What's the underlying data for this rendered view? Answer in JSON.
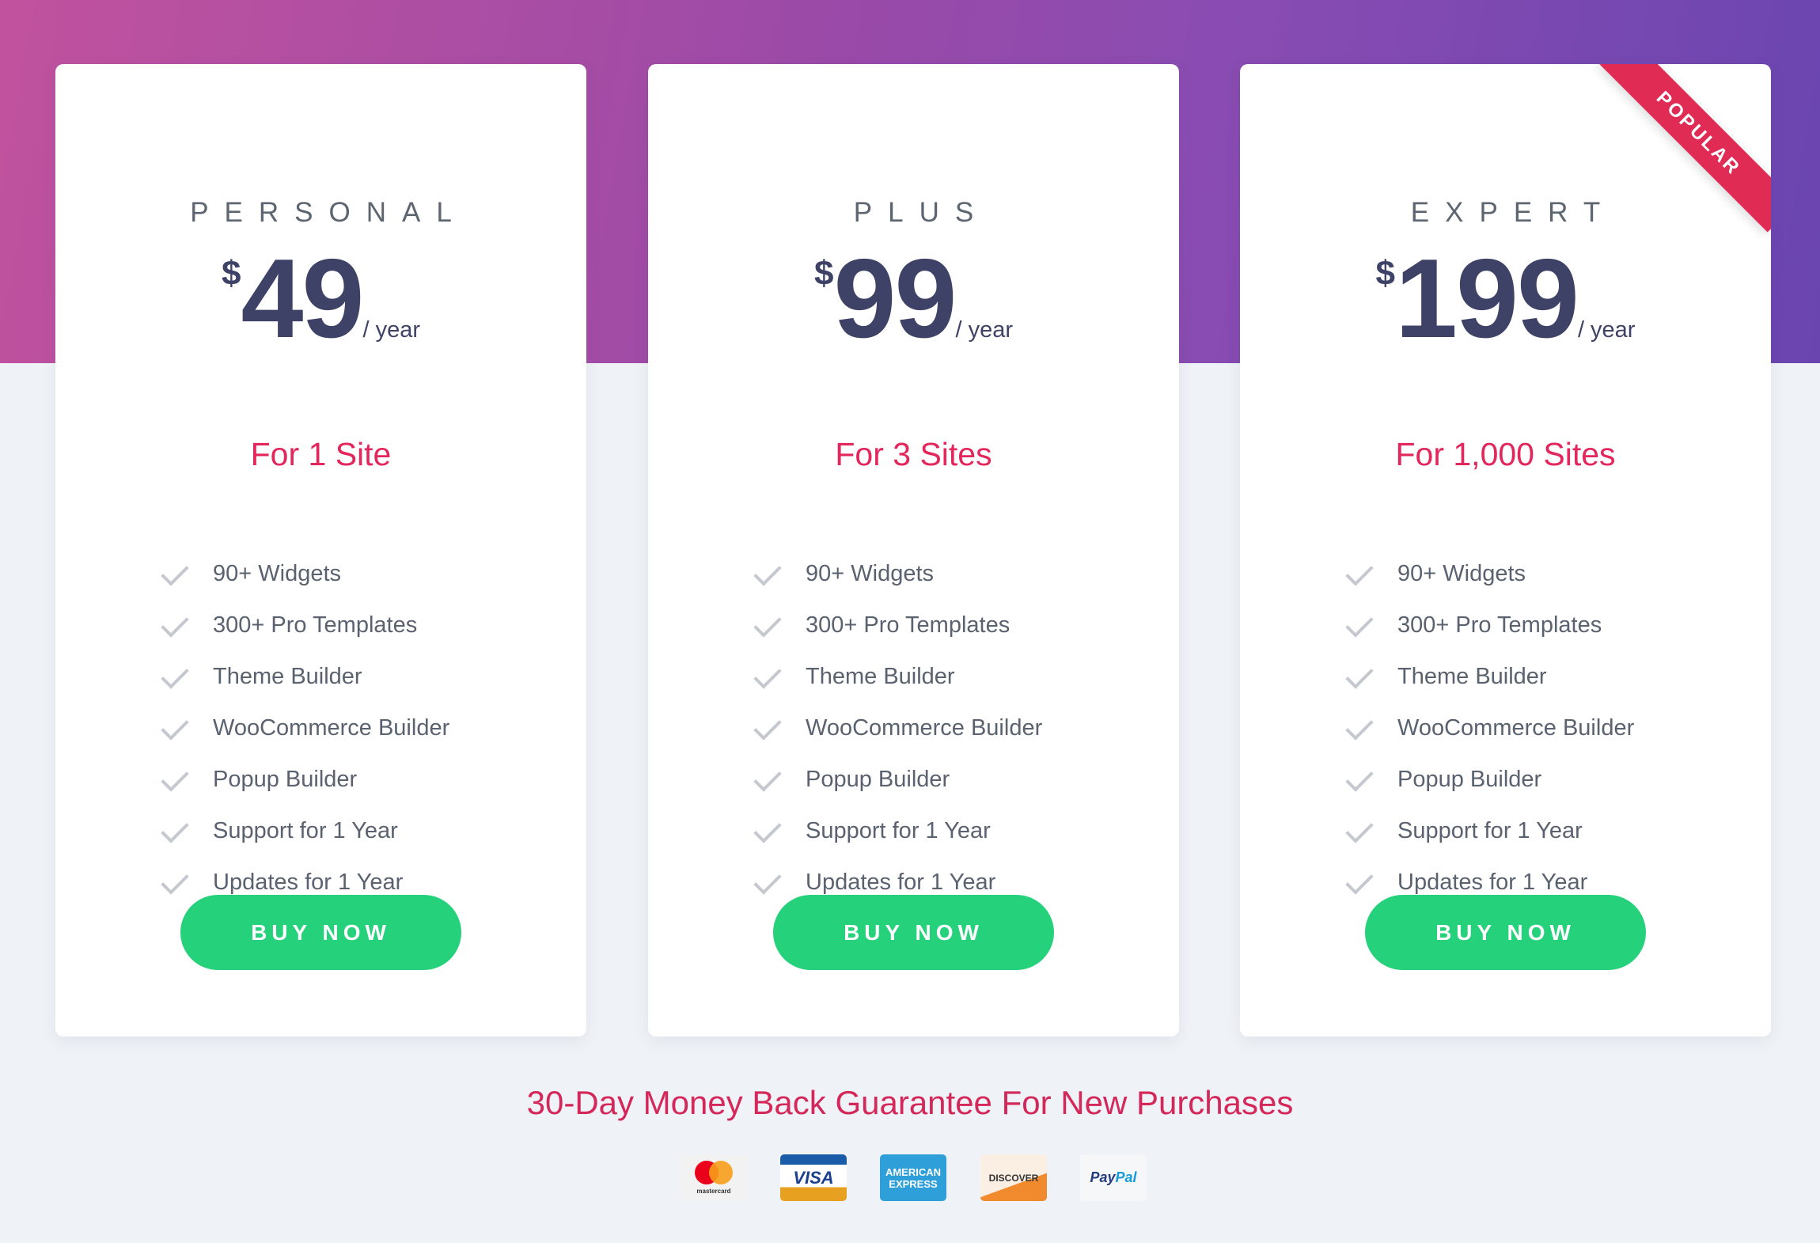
{
  "plans": [
    {
      "title": "PERSONAL",
      "currency": "$",
      "amount": "49",
      "period": "/ year",
      "subtitle": "For 1 Site",
      "button": "BUY NOW"
    },
    {
      "title": "PLUS",
      "currency": "$",
      "amount": "99",
      "period": "/ year",
      "subtitle": "For 3 Sites",
      "button": "BUY NOW"
    },
    {
      "title": "EXPERT",
      "currency": "$",
      "amount": "199",
      "period": "/ year",
      "subtitle": "For 1,000 Sites",
      "button": "BUY NOW",
      "badge": "POPULAR"
    }
  ],
  "features": [
    "90+ Widgets",
    "300+ Pro Templates",
    "Theme Builder",
    "WooCommerce Builder",
    "Popup Builder",
    "Support for 1 Year",
    "Updates for 1 Year"
  ],
  "guarantee": "30-Day Money Back Guarantee For New Purchases",
  "payments": {
    "mastercard": "mastercard",
    "visa": "VISA",
    "amex1": "AMERICAN",
    "amex2": "EXPRESS",
    "discover": "DISCOVER",
    "paypal1": "Pay",
    "paypal2": "Pal"
  },
  "colors": {
    "accent": "#e3265c",
    "button": "#25d17a",
    "price": "#3f4267",
    "ribbon": "#e02b55"
  }
}
